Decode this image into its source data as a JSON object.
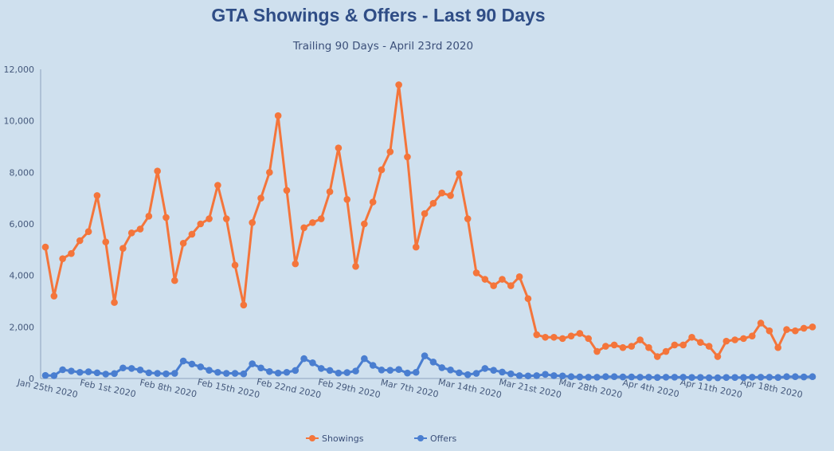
{
  "chart_data": {
    "type": "line",
    "title": "GTA Showings & Offers - Last 90 Days",
    "subtitle": "Trailing 90 Days - April 23rd 2020",
    "xlabel": "",
    "ylabel": "",
    "ylim": [
      0,
      12000
    ],
    "y_ticks": [
      "0",
      "2,000",
      "4,000",
      "6,000",
      "8,000",
      "10,000",
      "12,000"
    ],
    "x_tick_labels": [
      "Jan 25th 2020",
      "Feb 1st 2020",
      "Feb 8th 2020",
      "Feb 15th 2020",
      "Feb 22nd 2020",
      "Feb 29th 2020",
      "Mar 7th 2020",
      "Mar 14th 2020",
      "Mar 21st 2020",
      "Mar 28th 2020",
      "Apr 4th 2020",
      "Apr 11th 2020",
      "Apr 18th 2020"
    ],
    "grid": false,
    "legend_position": "bottom-center",
    "series": [
      {
        "name": "Showings",
        "color": "#f4753b",
        "values": [
          5100,
          3200,
          4650,
          4850,
          5350,
          5700,
          7100,
          5300,
          2950,
          5050,
          5650,
          5800,
          6300,
          8050,
          6250,
          3800,
          5250,
          5600,
          6000,
          6200,
          7500,
          6200,
          4400,
          2850,
          6050,
          7000,
          8000,
          10200,
          7300,
          4450,
          5850,
          6050,
          6200,
          7250,
          8950,
          6950,
          4350,
          6000,
          6850,
          8100,
          8800,
          11400,
          8600,
          5100,
          6400,
          6800,
          7200,
          7100,
          7950,
          6200,
          4100,
          3850,
          3600,
          3850,
          3600,
          3950,
          3100,
          1700,
          1600,
          1600,
          1550,
          1650,
          1750,
          1550,
          1050,
          1250,
          1300,
          1200,
          1250,
          1500,
          1200,
          850,
          1050,
          1300,
          1300,
          1600,
          1400,
          1250,
          850,
          1450,
          1500,
          1550,
          1650,
          2150,
          1850,
          1200,
          1900,
          1850,
          1950,
          2000
        ]
      },
      {
        "name": "Offers",
        "color": "#4a7ed0",
        "values": [
          120,
          110,
          340,
          290,
          240,
          260,
          220,
          170,
          190,
          410,
          390,
          330,
          220,
          200,
          180,
          200,
          680,
          560,
          450,
          320,
          240,
          200,
          200,
          180,
          570,
          410,
          270,
          210,
          240,
          310,
          770,
          610,
          390,
          310,
          210,
          230,
          290,
          770,
          510,
          330,
          320,
          350,
          210,
          240,
          880,
          640,
          420,
          330,
          220,
          150,
          200,
          390,
          320,
          250,
          180,
          110,
          100,
          110,
          160,
          110,
          100,
          70,
          60,
          50,
          50,
          70,
          70,
          60,
          60,
          50,
          50,
          40,
          50,
          50,
          50,
          40,
          40,
          30,
          30,
          40,
          40,
          40,
          50,
          50,
          50,
          40,
          70,
          70,
          60,
          70
        ]
      }
    ]
  }
}
